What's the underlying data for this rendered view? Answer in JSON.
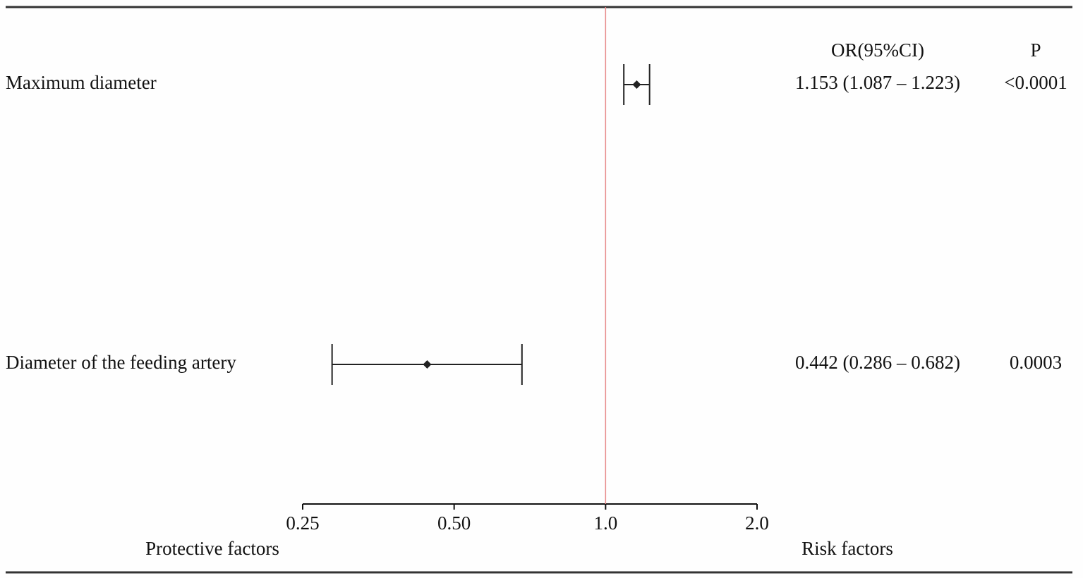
{
  "chart_data": {
    "type": "forest",
    "column_headers": [
      "OR(95%CI)",
      "P"
    ],
    "categories": [
      "Maximum diameter",
      "Diameter of the feeding artery"
    ],
    "values": [
      1.153,
      0.442
    ],
    "lower": [
      1.087,
      0.286
    ],
    "upper": [
      1.223,
      0.682
    ],
    "value_labels": [
      "1.153 (1.087 – 1.223)",
      "0.442 (0.286 – 0.682)"
    ],
    "p_values": [
      "<0.0001",
      "0.0003"
    ],
    "xlim": [
      0.25,
      2
    ],
    "xticks": [
      0.25,
      {
        "value": 0.5,
        "label": "0.50"
      },
      {
        "value": 1,
        "label": "1.0"
      },
      {
        "value": 2,
        "label": "2.0"
      }
    ],
    "log_scale": true,
    "reference_line": 1,
    "reference_color": "#e88a8a",
    "color": "#222222",
    "annotations": [
      "Protective factors",
      "Risk factors"
    ]
  }
}
